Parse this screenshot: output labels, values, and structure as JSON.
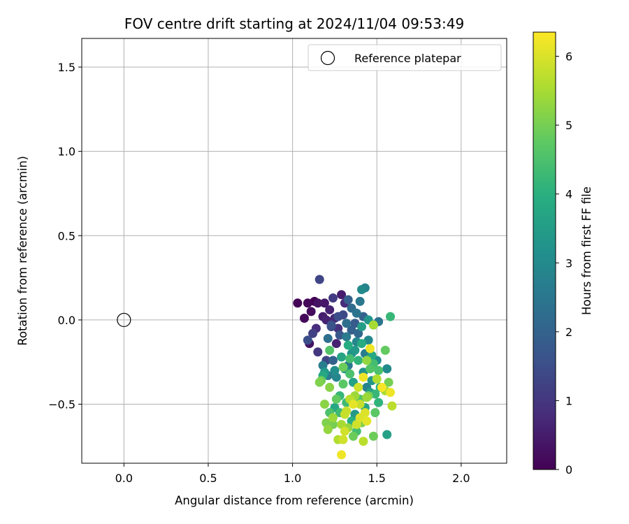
{
  "chart_data": {
    "type": "scatter",
    "title": "FOV centre drift starting at 2024/11/04 09:53:49",
    "xlabel": "Angular distance from reference (arcmin)",
    "ylabel": "Rotation from reference (arcmin)",
    "xlim": [
      -0.25,
      2.27
    ],
    "ylim": [
      -0.85,
      1.67
    ],
    "x_ticks": [
      0.0,
      0.5,
      1.0,
      1.5,
      2.0
    ],
    "x_tick_labels": [
      "0.0",
      "0.5",
      "1.0",
      "1.5",
      "2.0"
    ],
    "y_ticks": [
      -0.5,
      0.0,
      0.5,
      1.0,
      1.5
    ],
    "y_tick_labels": [
      "−0.5",
      "0.0",
      "0.5",
      "1.0",
      "1.5"
    ],
    "grid": true,
    "legend": {
      "placement": "top-right",
      "entries": [
        {
          "marker": "open-circle",
          "label": "Reference platepar"
        }
      ]
    },
    "reference_point": {
      "x": 0.0,
      "y": 0.0,
      "label": "Reference platepar"
    },
    "colorbar": {
      "label": "Hours from first FF file",
      "colormap": "viridis",
      "range": [
        0,
        6.35
      ],
      "ticks": [
        0,
        1,
        2,
        3,
        4,
        5,
        6
      ],
      "tick_labels": [
        "0",
        "1",
        "2",
        "3",
        "4",
        "5",
        "6"
      ]
    },
    "points": [
      {
        "x": 1.03,
        "y": 0.1,
        "h": 0.05
      },
      {
        "x": 1.07,
        "y": 0.01,
        "h": 0.15
      },
      {
        "x": 1.09,
        "y": 0.1,
        "h": 0.1
      },
      {
        "x": 1.1,
        "y": -0.14,
        "h": 0.3
      },
      {
        "x": 1.11,
        "y": 0.05,
        "h": 0.2
      },
      {
        "x": 1.13,
        "y": 0.11,
        "h": 0.0
      },
      {
        "x": 1.14,
        "y": -0.05,
        "h": 0.8
      },
      {
        "x": 1.15,
        "y": 0.1,
        "h": 0.3
      },
      {
        "x": 1.16,
        "y": 0.24,
        "h": 1.3
      },
      {
        "x": 1.18,
        "y": 0.02,
        "h": 0.5
      },
      {
        "x": 1.19,
        "y": 0.1,
        "h": 0.4
      },
      {
        "x": 1.22,
        "y": 0.06,
        "h": 0.6
      },
      {
        "x": 1.24,
        "y": 0.13,
        "h": 1.1
      },
      {
        "x": 1.25,
        "y": 0.01,
        "h": 0.7
      },
      {
        "x": 1.27,
        "y": -0.05,
        "h": 0.9
      },
      {
        "x": 1.29,
        "y": 0.15,
        "h": 0.5
      },
      {
        "x": 1.3,
        "y": 0.03,
        "h": 1.4
      },
      {
        "x": 1.31,
        "y": 0.1,
        "h": 0.8
      },
      {
        "x": 1.12,
        "y": -0.08,
        "h": 1.2
      },
      {
        "x": 1.15,
        "y": -0.19,
        "h": 1.0
      },
      {
        "x": 1.09,
        "y": -0.12,
        "h": 1.5
      },
      {
        "x": 1.2,
        "y": -0.24,
        "h": 1.3
      },
      {
        "x": 1.23,
        "y": -0.03,
        "h": 1.6
      },
      {
        "x": 1.26,
        "y": -0.14,
        "h": 0.6
      },
      {
        "x": 1.33,
        "y": 0.12,
        "h": 1.9
      },
      {
        "x": 1.35,
        "y": 0.07,
        "h": 2.2
      },
      {
        "x": 1.38,
        "y": 0.04,
        "h": 2.4
      },
      {
        "x": 1.4,
        "y": 0.11,
        "h": 2.5
      },
      {
        "x": 1.41,
        "y": 0.18,
        "h": 3.0
      },
      {
        "x": 1.43,
        "y": 0.19,
        "h": 2.8
      },
      {
        "x": 1.45,
        "y": 0.0,
        "h": 3.3
      },
      {
        "x": 1.48,
        "y": -0.03,
        "h": 3.6
      },
      {
        "x": 1.51,
        "y": -0.01,
        "h": 2.4
      },
      {
        "x": 1.58,
        "y": 0.02,
        "h": 4.2
      },
      {
        "x": 1.42,
        "y": 0.02,
        "h": 2.0
      },
      {
        "x": 1.37,
        "y": -0.02,
        "h": 1.8
      },
      {
        "x": 1.21,
        "y": -0.11,
        "h": 2.3
      },
      {
        "x": 1.24,
        "y": -0.24,
        "h": 2.0
      },
      {
        "x": 1.28,
        "y": -0.09,
        "h": 1.7
      },
      {
        "x": 1.32,
        "y": -0.1,
        "h": 2.6
      },
      {
        "x": 1.35,
        "y": -0.2,
        "h": 3.2
      },
      {
        "x": 1.38,
        "y": -0.13,
        "h": 2.9
      },
      {
        "x": 1.41,
        "y": -0.04,
        "h": 3.5
      },
      {
        "x": 1.43,
        "y": -0.2,
        "h": 2.7
      },
      {
        "x": 1.47,
        "y": -0.21,
        "h": 3.8
      },
      {
        "x": 1.5,
        "y": -0.24,
        "h": 3.1
      },
      {
        "x": 1.56,
        "y": -0.29,
        "h": 3.0
      },
      {
        "x": 1.18,
        "y": -0.27,
        "h": 2.7
      },
      {
        "x": 1.19,
        "y": -0.31,
        "h": 3.4
      },
      {
        "x": 1.22,
        "y": -0.18,
        "h": 4.6
      },
      {
        "x": 1.26,
        "y": -0.34,
        "h": 2.9
      },
      {
        "x": 1.29,
        "y": -0.22,
        "h": 3.7
      },
      {
        "x": 1.31,
        "y": -0.29,
        "h": 3.3
      },
      {
        "x": 1.33,
        "y": -0.15,
        "h": 3.9
      },
      {
        "x": 1.36,
        "y": -0.37,
        "h": 3.6
      },
      {
        "x": 1.39,
        "y": -0.24,
        "h": 4.1
      },
      {
        "x": 1.42,
        "y": -0.31,
        "h": 3.2
      },
      {
        "x": 1.44,
        "y": -0.4,
        "h": 2.8
      },
      {
        "x": 1.46,
        "y": -0.43,
        "h": 3.5
      },
      {
        "x": 1.48,
        "y": -0.26,
        "h": 4.4
      },
      {
        "x": 1.52,
        "y": -0.4,
        "h": 4.0
      },
      {
        "x": 1.55,
        "y": -0.18,
        "h": 4.8
      },
      {
        "x": 1.17,
        "y": -0.36,
        "h": 4.9
      },
      {
        "x": 1.21,
        "y": -0.33,
        "h": 2.6
      },
      {
        "x": 1.25,
        "y": -0.52,
        "h": 3.8
      },
      {
        "x": 1.28,
        "y": -0.45,
        "h": 4.2
      },
      {
        "x": 1.3,
        "y": -0.38,
        "h": 4.7
      },
      {
        "x": 1.32,
        "y": -0.49,
        "h": 4.3
      },
      {
        "x": 1.34,
        "y": -0.32,
        "h": 4.5
      },
      {
        "x": 1.37,
        "y": -0.56,
        "h": 3.4
      },
      {
        "x": 1.4,
        "y": -0.47,
        "h": 4.6
      },
      {
        "x": 1.43,
        "y": -0.52,
        "h": 3.7
      },
      {
        "x": 1.45,
        "y": -0.45,
        "h": 5.0
      },
      {
        "x": 1.49,
        "y": -0.55,
        "h": 4.7
      },
      {
        "x": 1.51,
        "y": -0.49,
        "h": 4.1
      },
      {
        "x": 1.19,
        "y": -0.5,
        "h": 5.2
      },
      {
        "x": 1.2,
        "y": -0.61,
        "h": 5.1
      },
      {
        "x": 1.22,
        "y": -0.55,
        "h": 4.5
      },
      {
        "x": 1.24,
        "y": -0.58,
        "h": 5.4
      },
      {
        "x": 1.27,
        "y": -0.71,
        "h": 5.6
      },
      {
        "x": 1.29,
        "y": -0.62,
        "h": 5.5
      },
      {
        "x": 1.31,
        "y": -0.56,
        "h": 5.8
      },
      {
        "x": 1.33,
        "y": -0.64,
        "h": 5.3
      },
      {
        "x": 1.36,
        "y": -0.69,
        "h": 4.9
      },
      {
        "x": 1.38,
        "y": -0.62,
        "h": 5.9
      },
      {
        "x": 1.4,
        "y": -0.58,
        "h": 6.0
      },
      {
        "x": 1.42,
        "y": -0.72,
        "h": 5.7
      },
      {
        "x": 1.44,
        "y": -0.6,
        "h": 6.1
      },
      {
        "x": 1.48,
        "y": -0.69,
        "h": 4.9
      },
      {
        "x": 1.56,
        "y": -0.68,
        "h": 3.6
      },
      {
        "x": 1.29,
        "y": -0.8,
        "h": 6.2
      },
      {
        "x": 1.21,
        "y": -0.65,
        "h": 5.3
      },
      {
        "x": 1.3,
        "y": -0.71,
        "h": 5.9
      },
      {
        "x": 1.34,
        "y": -0.47,
        "h": 5.7
      },
      {
        "x": 1.37,
        "y": -0.45,
        "h": 5.4
      },
      {
        "x": 1.4,
        "y": -0.5,
        "h": 5.8
      },
      {
        "x": 1.43,
        "y": -0.55,
        "h": 6.0
      },
      {
        "x": 1.46,
        "y": -0.17,
        "h": 6.2
      },
      {
        "x": 1.48,
        "y": -0.03,
        "h": 5.5
      },
      {
        "x": 1.5,
        "y": -0.35,
        "h": 5.6
      },
      {
        "x": 1.53,
        "y": -0.4,
        "h": 6.3
      },
      {
        "x": 1.55,
        "y": -0.42,
        "h": 5.5
      },
      {
        "x": 1.57,
        "y": -0.37,
        "h": 5.0
      },
      {
        "x": 1.58,
        "y": -0.43,
        "h": 6.2
      },
      {
        "x": 1.59,
        "y": -0.51,
        "h": 5.7
      },
      {
        "x": 1.42,
        "y": -0.34,
        "h": 6.2
      },
      {
        "x": 1.39,
        "y": -0.4,
        "h": 5.9
      },
      {
        "x": 1.36,
        "y": -0.5,
        "h": 6.1
      },
      {
        "x": 1.32,
        "y": -0.54,
        "h": 5.8
      },
      {
        "x": 1.26,
        "y": -0.47,
        "h": 4.8
      },
      {
        "x": 1.22,
        "y": -0.4,
        "h": 5.2
      },
      {
        "x": 1.16,
        "y": -0.37,
        "h": 5.1
      },
      {
        "x": 1.44,
        "y": -0.24,
        "h": 5.3
      },
      {
        "x": 1.46,
        "y": -0.29,
        "h": 4.6
      },
      {
        "x": 1.34,
        "y": -0.23,
        "h": 4.4
      },
      {
        "x": 1.3,
        "y": -0.28,
        "h": 4.9
      },
      {
        "x": 1.39,
        "y": -0.08,
        "h": 2.1
      },
      {
        "x": 1.35,
        "y": -0.06,
        "h": 1.9
      },
      {
        "x": 1.32,
        "y": -0.02,
        "h": 2.3
      },
      {
        "x": 1.27,
        "y": 0.02,
        "h": 1.5
      },
      {
        "x": 1.23,
        "y": -0.04,
        "h": 1.4
      },
      {
        "x": 1.2,
        "y": 0.0,
        "h": 0.6
      },
      {
        "x": 1.45,
        "y": -0.12,
        "h": 3.0
      },
      {
        "x": 1.41,
        "y": -0.14,
        "h": 3.9
      },
      {
        "x": 1.37,
        "y": -0.18,
        "h": 3.4
      },
      {
        "x": 1.33,
        "y": -0.27,
        "h": 2.5
      },
      {
        "x": 1.25,
        "y": -0.3,
        "h": 3.1
      },
      {
        "x": 1.18,
        "y": -0.33,
        "h": 3.8
      },
      {
        "x": 1.51,
        "y": -0.3,
        "h": 4.5
      },
      {
        "x": 1.49,
        "y": -0.44,
        "h": 4.2
      },
      {
        "x": 1.47,
        "y": -0.36,
        "h": 3.3
      },
      {
        "x": 1.44,
        "y": -0.46,
        "h": 5.4
      },
      {
        "x": 1.41,
        "y": -0.61,
        "h": 5.1
      },
      {
        "x": 1.38,
        "y": -0.66,
        "h": 4.4
      },
      {
        "x": 1.35,
        "y": -0.6,
        "h": 4.0
      },
      {
        "x": 1.31,
        "y": -0.66,
        "h": 5.9
      },
      {
        "x": 1.28,
        "y": -0.55,
        "h": 4.3
      },
      {
        "x": 1.24,
        "y": -0.62,
        "h": 5.0
      }
    ]
  }
}
